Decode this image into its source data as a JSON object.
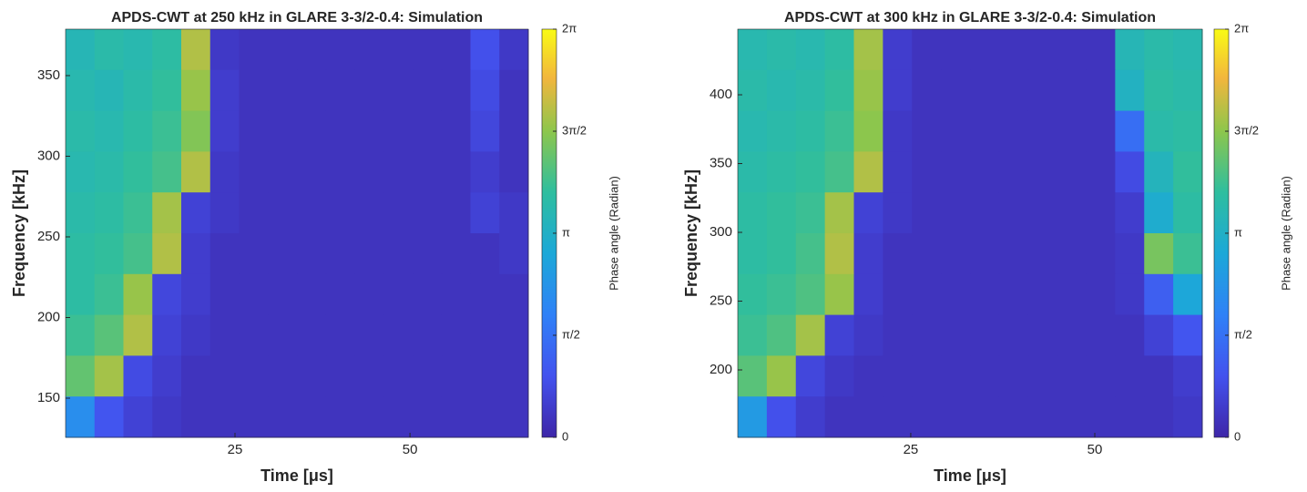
{
  "chart_data": [
    {
      "type": "heatmap",
      "title": "APDS-CWT at 250 kHz in GLARE 3-3/2-0.4: Simulation",
      "x_label": "Time [μs]",
      "y_label": "Frequency [kHz]",
      "colorbar_label": "Phase angle (Radian)",
      "xlim": [
        0.8,
        66.9
      ],
      "ylim": [
        125.7,
        378.8
      ],
      "xticks": [
        25,
        50
      ],
      "yticks": [
        150,
        200,
        250,
        300,
        350
      ],
      "clim": [
        0,
        6.283
      ],
      "cticks": [
        0,
        {
          "value": 1.571,
          "label": "π/2"
        },
        {
          "value": 3.142,
          "label": "π"
        },
        {
          "value": 4.712,
          "label": "3π/2"
        },
        {
          "value": 6.283,
          "label": "2π"
        }
      ],
      "z": [
        [
          3.4,
          3.6,
          3.5,
          3.7,
          5.0,
          0.4,
          0.3,
          0.3,
          0.3,
          0.3,
          0.3,
          0.3,
          0.3,
          0.3,
          0.9,
          0.4
        ],
        [
          3.5,
          3.4,
          3.6,
          3.8,
          4.8,
          0.5,
          0.3,
          0.3,
          0.3,
          0.3,
          0.3,
          0.3,
          0.3,
          0.3,
          0.8,
          0.3
        ],
        [
          3.6,
          3.5,
          3.7,
          3.9,
          4.6,
          0.5,
          0.3,
          0.3,
          0.3,
          0.3,
          0.3,
          0.3,
          0.3,
          0.3,
          0.7,
          0.3
        ],
        [
          3.5,
          3.6,
          3.8,
          4.0,
          5.0,
          0.4,
          0.3,
          0.3,
          0.3,
          0.3,
          0.3,
          0.3,
          0.3,
          0.3,
          0.5,
          0.3
        ],
        [
          3.6,
          3.7,
          3.9,
          4.9,
          0.6,
          0.4,
          0.3,
          0.3,
          0.3,
          0.3,
          0.3,
          0.3,
          0.3,
          0.3,
          0.6,
          0.4
        ],
        [
          3.7,
          3.8,
          4.0,
          5.0,
          0.5,
          0.3,
          0.3,
          0.3,
          0.3,
          0.3,
          0.3,
          0.3,
          0.3,
          0.3,
          0.3,
          0.4
        ],
        [
          3.7,
          3.9,
          4.8,
          0.7,
          0.5,
          0.3,
          0.3,
          0.3,
          0.3,
          0.3,
          0.3,
          0.3,
          0.3,
          0.3,
          0.3,
          0.3
        ],
        [
          3.9,
          4.2,
          5.0,
          0.6,
          0.4,
          0.3,
          0.3,
          0.3,
          0.3,
          0.3,
          0.3,
          0.3,
          0.3,
          0.3,
          0.3,
          0.3
        ],
        [
          4.3,
          4.9,
          0.8,
          0.5,
          0.3,
          0.3,
          0.3,
          0.3,
          0.3,
          0.3,
          0.3,
          0.3,
          0.3,
          0.3,
          0.3,
          0.3
        ],
        [
          2.2,
          1.0,
          0.6,
          0.4,
          0.3,
          0.3,
          0.3,
          0.3,
          0.3,
          0.3,
          0.3,
          0.3,
          0.3,
          0.3,
          0.3,
          0.3
        ]
      ]
    },
    {
      "type": "heatmap",
      "title": "APDS-CWT at 300 kHz in GLARE 3-3/2-0.4: Simulation",
      "x_label": "Time [μs]",
      "y_label": "Frequency [kHz]",
      "colorbar_label": "Phase angle (Radian)",
      "xlim": [
        1.5,
        64.6
      ],
      "ylim": [
        151,
        447.7
      ],
      "xticks": [
        25,
        50
      ],
      "yticks": [
        200,
        250,
        300,
        350,
        400
      ],
      "clim": [
        0,
        6.283
      ],
      "cticks": [
        0,
        {
          "value": 1.571,
          "label": "π/2"
        },
        {
          "value": 3.142,
          "label": "π"
        },
        {
          "value": 4.712,
          "label": "3π/2"
        },
        {
          "value": 6.283,
          "label": "2π"
        }
      ],
      "z": [
        [
          3.5,
          3.6,
          3.5,
          3.7,
          4.9,
          0.5,
          0.3,
          0.3,
          0.3,
          0.3,
          0.3,
          0.3,
          0.3,
          3.4,
          3.6,
          3.5
        ],
        [
          3.6,
          3.5,
          3.6,
          3.8,
          4.8,
          0.5,
          0.3,
          0.3,
          0.3,
          0.3,
          0.3,
          0.3,
          0.3,
          3.2,
          3.7,
          3.6
        ],
        [
          3.5,
          3.6,
          3.7,
          3.9,
          4.7,
          0.4,
          0.3,
          0.3,
          0.3,
          0.3,
          0.3,
          0.3,
          0.3,
          1.5,
          3.6,
          3.7
        ],
        [
          3.6,
          3.7,
          3.8,
          4.0,
          5.0,
          0.4,
          0.3,
          0.3,
          0.3,
          0.3,
          0.3,
          0.3,
          0.3,
          0.8,
          3.3,
          3.8
        ],
        [
          3.7,
          3.8,
          3.9,
          4.9,
          0.6,
          0.4,
          0.3,
          0.3,
          0.3,
          0.3,
          0.3,
          0.3,
          0.3,
          0.5,
          3.0,
          3.7
        ],
        [
          3.7,
          3.8,
          4.0,
          5.0,
          0.5,
          0.3,
          0.3,
          0.3,
          0.3,
          0.3,
          0.3,
          0.3,
          0.3,
          0.4,
          4.5,
          3.9
        ],
        [
          3.8,
          3.9,
          4.1,
          4.8,
          0.5,
          0.3,
          0.3,
          0.3,
          0.3,
          0.3,
          0.3,
          0.3,
          0.3,
          0.4,
          1.2,
          2.8
        ],
        [
          3.9,
          4.1,
          4.9,
          0.6,
          0.4,
          0.3,
          0.3,
          0.3,
          0.3,
          0.3,
          0.3,
          0.3,
          0.3,
          0.3,
          0.6,
          1.0
        ],
        [
          4.2,
          4.8,
          0.7,
          0.4,
          0.3,
          0.3,
          0.3,
          0.3,
          0.3,
          0.3,
          0.3,
          0.3,
          0.3,
          0.3,
          0.3,
          0.5
        ],
        [
          2.5,
          0.9,
          0.5,
          0.3,
          0.3,
          0.3,
          0.3,
          0.3,
          0.3,
          0.3,
          0.3,
          0.3,
          0.3,
          0.3,
          0.3,
          0.4
        ]
      ]
    }
  ]
}
